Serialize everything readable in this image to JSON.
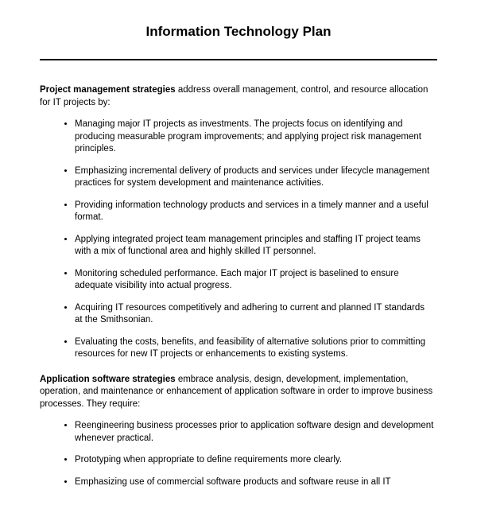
{
  "title": "Information Technology Plan",
  "section1": {
    "lead": "Project management strategies",
    "intro": " address overall management, control, and resource allocation for IT projects by:",
    "bullets": [
      "Managing major IT projects as investments. The projects focus on identifying and producing measurable program improvements; and applying project risk management principles.",
      "Emphasizing incremental delivery of products and services under lifecycle management practices for system development and maintenance activities.",
      "Providing information technology products and services in a timely manner and a useful format.",
      "Applying integrated project team management principles and staffing IT project teams with a mix of functional area and highly skilled IT personnel.",
      "Monitoring scheduled performance. Each major IT project is baselined to ensure adequate visibility into actual progress.",
      "Acquiring IT resources competitively and adhering to current and planned IT standards at the Smithsonian.",
      "Evaluating the costs, benefits, and feasibility of alternative solutions prior to committing resources for new IT projects or enhancements to existing systems."
    ]
  },
  "section2": {
    "lead": "Application software strategies",
    "intro": " embrace analysis, design, development, implementation, operation, and maintenance or enhancement of application software in order to improve business processes. They require:",
    "bullets": [
      "Reengineering business processes prior to application software design and development whenever practical.",
      "Prototyping when appropriate to define requirements more clearly.",
      "Emphasizing use of commercial software products and software reuse in all IT"
    ]
  }
}
